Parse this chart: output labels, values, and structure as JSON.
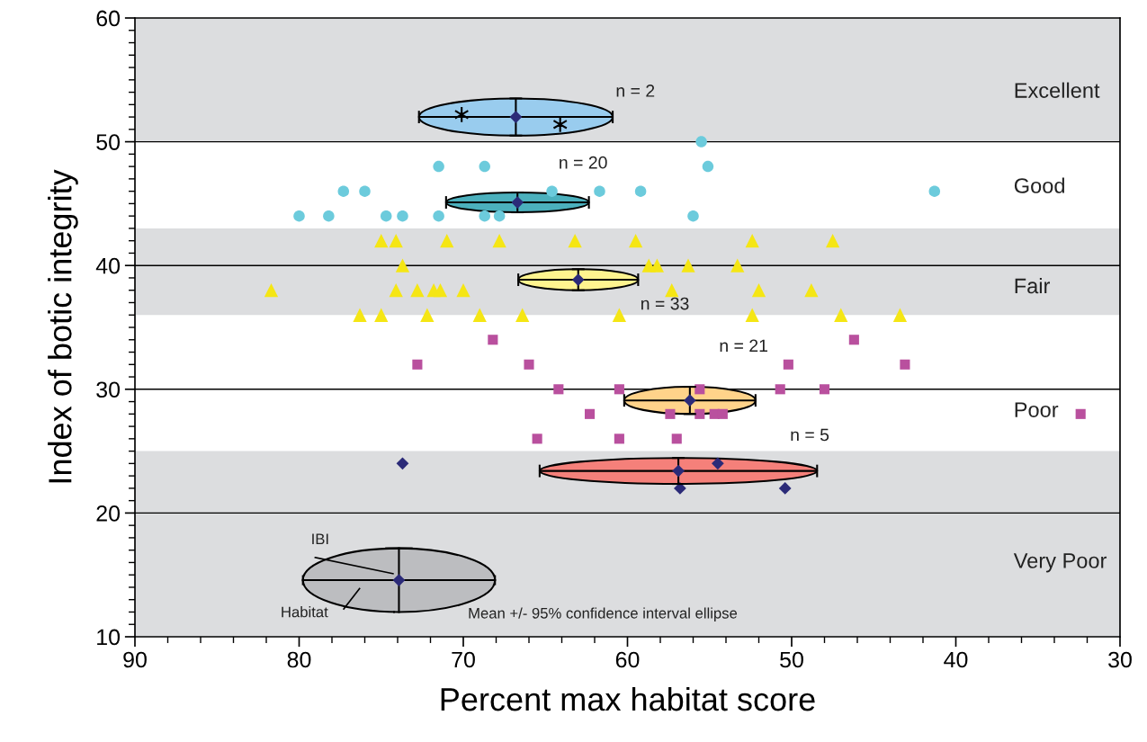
{
  "chart_data": {
    "type": "scatter",
    "xlabel": "Percent max habitat score",
    "ylabel": "Index of botic integrity",
    "xlim": [
      90,
      30
    ],
    "xticks": [
      90,
      80,
      70,
      60,
      50,
      40,
      30
    ],
    "ylim": [
      10,
      60
    ],
    "yticks": [
      10,
      20,
      30,
      40,
      50,
      60
    ],
    "grid": false,
    "bands": [
      {
        "axis": "y",
        "from": 50,
        "to": 60,
        "color": "#dcdddf"
      },
      {
        "axis": "y",
        "from": 36,
        "to": 43,
        "color": "#dcdddf"
      },
      {
        "axis": "y",
        "from": 20,
        "to": 25,
        "color": "#dcdddf"
      },
      {
        "axis": "y",
        "from": 10,
        "to": 20,
        "color": "#dcdddf"
      }
    ],
    "ref_lines": [
      {
        "axis": "y",
        "value": 50,
        "color": "#000000"
      },
      {
        "axis": "y",
        "value": 40,
        "color": "#000000"
      },
      {
        "axis": "y",
        "value": 30,
        "color": "#000000"
      },
      {
        "axis": "y",
        "value": 20,
        "color": "#000000"
      }
    ],
    "series": [
      {
        "marker": "cross",
        "color": "#000000",
        "x": [
          70.1,
          64.1
        ],
        "values": [
          52.2,
          51.4
        ]
      },
      {
        "marker": "circle",
        "color": "#6ccbdc",
        "x": [
          80.0,
          78.2,
          77.3,
          76.0,
          74.7,
          73.7,
          71.5,
          71.5,
          68.7,
          68.7,
          67.8,
          64.6,
          61.7,
          59.2,
          56.0,
          55.5,
          55.1,
          41.3
        ],
        "values": [
          44,
          44,
          46,
          46,
          44,
          44,
          48,
          44,
          48,
          44,
          44,
          46,
          46,
          46,
          44,
          50,
          48,
          46
        ]
      },
      {
        "marker": "triangle",
        "color": "#f5e614",
        "x": [
          75.0,
          74.1,
          71.0,
          67.8,
          63.2,
          59.5,
          52.4,
          47.5,
          73.7,
          58.7,
          58.2,
          56.3,
          53.3,
          81.7,
          74.1,
          72.8,
          71.8,
          71.4,
          70.0,
          57.3,
          52.0,
          48.8,
          76.3,
          75.0,
          72.2,
          69.0,
          66.4,
          60.5,
          52.4,
          47.0,
          43.4
        ],
        "values": [
          42,
          42,
          42,
          42,
          42,
          42,
          42,
          42,
          40,
          40,
          40,
          40,
          40,
          38,
          38,
          38,
          38,
          38,
          38,
          38,
          38,
          38,
          36,
          36,
          36,
          36,
          36,
          36,
          36,
          36,
          36
        ]
      },
      {
        "marker": "square",
        "color": "#b9509e",
        "x": [
          68.2,
          46.2,
          72.8,
          66.0,
          50.2,
          43.1,
          64.2,
          60.5,
          55.6,
          50.7,
          48.0,
          62.3,
          57.4,
          55.6,
          54.7,
          54.2,
          32.4,
          65.5,
          60.5,
          57.0
        ],
        "values": [
          34,
          34,
          32,
          32,
          32,
          32,
          30,
          30,
          30,
          30,
          30,
          28,
          28,
          28,
          28,
          28,
          28,
          26,
          26,
          26
        ]
      },
      {
        "marker": "diamond",
        "color": "#2b2a78",
        "x": [
          73.7,
          54.5,
          56.8,
          50.4
        ],
        "values": [
          24,
          24,
          22,
          22
        ]
      },
      {
        "marker": "diamond",
        "color": "#2b2a78",
        "x": [
          66.8,
          66.7,
          63.0,
          56.2,
          56.9
        ],
        "values": [
          52.0,
          45.1,
          38.85,
          29.1,
          23.4
        ],
        "xerrors": [
          5.9,
          4.35,
          3.65,
          4.0,
          8.45
        ],
        "errors": [
          1.5,
          0.8,
          0.85,
          1.1,
          1.05
        ]
      }
    ],
    "annotations": [
      "Excellent",
      "Good",
      "Fair",
      "Poor",
      "Very Poor",
      "n = 2",
      "n = 20",
      "n = 33",
      "n = 21",
      "n = 5",
      "IBI",
      "Habitat",
      "Mean +/- 95% confidence interval ellipse"
    ]
  }
}
